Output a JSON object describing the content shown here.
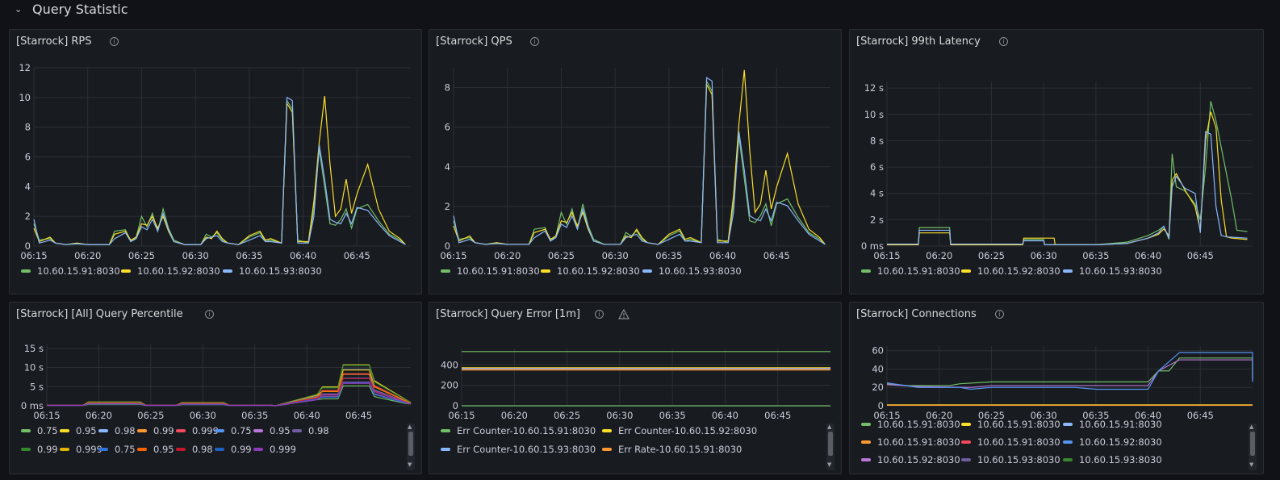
{
  "row": {
    "title": "Query Statistic"
  },
  "panels": [
    {
      "title": "[Starrock] RPS",
      "chart": {
        "type": "line",
        "ylim": [
          0,
          12
        ],
        "yticks": [
          "0",
          "2",
          "4",
          "6",
          "8",
          "10",
          "12"
        ],
        "ytick_values": [
          0,
          2,
          4,
          6,
          8,
          10,
          12
        ],
        "xticks": [
          "06:15",
          "06:20",
          "06:25",
          "06:30",
          "06:35",
          "06:40",
          "06:45"
        ],
        "xlim_minutes": [
          0,
          35
        ]
      },
      "legend": [
        {
          "label": "10.60.15.91:8030",
          "color": "#73bf69"
        },
        {
          "label": "10.60.15.92:8030",
          "color": "#fade2a"
        },
        {
          "label": "10.60.15.93:8030",
          "color": "#8ab8ff"
        }
      ]
    },
    {
      "title": "[Starrock] QPS",
      "chart": {
        "type": "line",
        "ylim": [
          0,
          9
        ],
        "yticks": [
          "0",
          "2",
          "4",
          "6",
          "8"
        ],
        "ytick_values": [
          0,
          2,
          4,
          6,
          8
        ],
        "xticks": [
          "06:15",
          "06:20",
          "06:25",
          "06:30",
          "06:35",
          "06:40",
          "06:45"
        ],
        "xlim_minutes": [
          0,
          35
        ]
      },
      "legend": [
        {
          "label": "10.60.15.91:8030",
          "color": "#73bf69"
        },
        {
          "label": "10.60.15.92:8030",
          "color": "#fade2a"
        },
        {
          "label": "10.60.15.93:8030",
          "color": "#8ab8ff"
        }
      ]
    },
    {
      "title": "[Starrock] 99th Latency",
      "chart": {
        "type": "line",
        "ylim": [
          0,
          12.5
        ],
        "yticks": [
          "0 ms",
          "2 s",
          "4 s",
          "6 s",
          "8 s",
          "10 s",
          "12 s"
        ],
        "ytick_values": [
          0,
          2,
          4,
          6,
          8,
          10,
          12
        ],
        "xticks": [
          "06:15",
          "06:20",
          "06:25",
          "06:30",
          "06:35",
          "06:40",
          "06:45"
        ],
        "xlim_minutes": [
          0,
          35
        ]
      },
      "legend": [
        {
          "label": "10.60.15.91:8030",
          "color": "#73bf69"
        },
        {
          "label": "10.60.15.92:8030",
          "color": "#fade2a"
        },
        {
          "label": "10.60.15.93:8030",
          "color": "#8ab8ff"
        }
      ]
    },
    {
      "title": "[Starrock] [All] Query Percentile",
      "chart": {
        "type": "line",
        "ylim": [
          0,
          16
        ],
        "yticks": [
          "0 ms",
          "5 s",
          "10 s",
          "15 s"
        ],
        "ytick_values": [
          0,
          5,
          10,
          15
        ],
        "xticks": [
          "06:15",
          "06:20",
          "06:25",
          "06:30",
          "06:35",
          "06:40",
          "06:45"
        ],
        "xlim_minutes": [
          0,
          35
        ]
      },
      "legend": [
        {
          "label": "0.75",
          "color": "#73bf69"
        },
        {
          "label": "0.95",
          "color": "#fade2a"
        },
        {
          "label": "0.98",
          "color": "#8ab8ff"
        },
        {
          "label": "0.99",
          "color": "#ff9830"
        },
        {
          "label": "0.999",
          "color": "#f2495c"
        },
        {
          "label": "0.75",
          "color": "#5794f2"
        },
        {
          "label": "0.95",
          "color": "#b877d9"
        },
        {
          "label": "0.98",
          "color": "#705da0"
        },
        {
          "label": "0.99",
          "color": "#37872d"
        },
        {
          "label": "0.999",
          "color": "#e0b400"
        },
        {
          "label": "0.75",
          "color": "#3274d9"
        },
        {
          "label": "0.95",
          "color": "#fa6400"
        },
        {
          "label": "0.98",
          "color": "#c4162a"
        },
        {
          "label": "0.99",
          "color": "#1f60c4"
        },
        {
          "label": "0.999",
          "color": "#8f3bb8"
        }
      ]
    },
    {
      "title": "[Starrock] Query Error [1m]",
      "chart": {
        "type": "line",
        "ylim": [
          0,
          560
        ],
        "yticks": [
          "0",
          "200",
          "400"
        ],
        "ytick_values": [
          0,
          200,
          400
        ],
        "xticks": [
          "06:15",
          "06:20",
          "06:25",
          "06:30",
          "06:35",
          "06:40",
          "06:45"
        ],
        "xlim_minutes": [
          0,
          35
        ],
        "series_values": [
          {
            "name": "Err Counter-10.60.15.91:8030",
            "value": 530
          },
          {
            "name": "Err Counter-10.60.15.92:8030",
            "value": 370
          },
          {
            "name": "Err Counter-10.60.15.93:8030",
            "value": 365
          },
          {
            "name": "Err Rate-10.60.15.91:8030",
            "value": 0
          }
        ]
      },
      "legend": [
        {
          "label": "Err Counter-10.60.15.91:8030",
          "color": "#73bf69"
        },
        {
          "label": "Err Counter-10.60.15.92:8030",
          "color": "#fade2a"
        },
        {
          "label": "Err Counter-10.60.15.93:8030",
          "color": "#8ab8ff"
        },
        {
          "label": "Err Rate-10.60.15.91:8030",
          "color": "#ff9830"
        }
      ]
    },
    {
      "title": "[Starrock] Connections",
      "chart": {
        "type": "line",
        "ylim": [
          0,
          65
        ],
        "yticks": [
          "0",
          "20",
          "40",
          "60"
        ],
        "ytick_values": [
          0,
          20,
          40,
          60
        ],
        "xticks": [
          "06:15",
          "06:20",
          "06:25",
          "06:30",
          "06:35",
          "06:40",
          "06:45"
        ],
        "xlim_minutes": [
          0,
          35
        ]
      },
      "legend": [
        {
          "label": "10.60.15.91:8030",
          "color": "#73bf69"
        },
        {
          "label": "10.60.15.91:8030",
          "color": "#fade2a"
        },
        {
          "label": "10.60.15.91:8030",
          "color": "#8ab8ff"
        },
        {
          "label": "10.60.15.91:8030",
          "color": "#ff9830"
        },
        {
          "label": "10.60.15.91:8030",
          "color": "#f2495c"
        },
        {
          "label": "10.60.15.92:8030",
          "color": "#5794f2"
        },
        {
          "label": "10.60.15.92:8030",
          "color": "#b877d9"
        },
        {
          "label": "10.60.15.93:8030",
          "color": "#705da0"
        },
        {
          "label": "10.60.15.93:8030",
          "color": "#37872d"
        }
      ]
    }
  ],
  "icons": {
    "info": "info-icon",
    "warning": "warning-icon",
    "chevron": "chevron-down-icon"
  }
}
